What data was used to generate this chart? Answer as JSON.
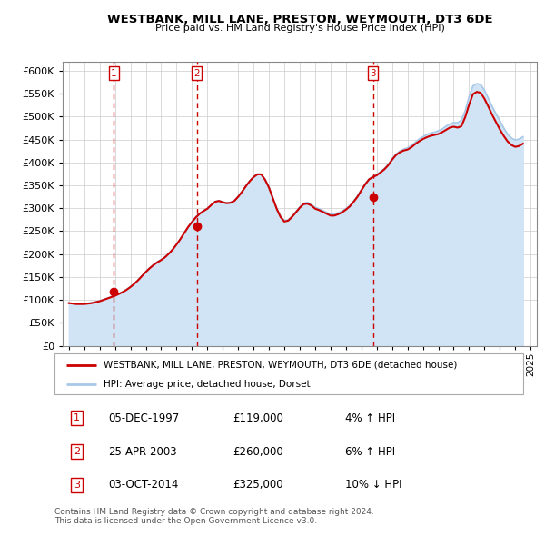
{
  "title_line1": "WESTBANK, MILL LANE, PRESTON, WEYMOUTH, DT3 6DE",
  "title_line2": "Price paid vs. HM Land Registry's House Price Index (HPI)",
  "ylim": [
    0,
    620000
  ],
  "yticks": [
    0,
    50000,
    100000,
    150000,
    200000,
    250000,
    300000,
    350000,
    400000,
    450000,
    500000,
    550000,
    600000
  ],
  "xlim_start": 1994.6,
  "xlim_end": 2025.4,
  "hpi_color": "#a8c8e8",
  "hpi_fill_color": "#d0e4f5",
  "price_color": "#cc0000",
  "transactions": [
    {
      "num": 1,
      "year": 1997.92,
      "price": 119000,
      "date": "05-DEC-1997",
      "pct": "4%",
      "dir": "↑"
    },
    {
      "num": 2,
      "year": 2003.32,
      "price": 260000,
      "date": "25-APR-2003",
      "pct": "6%",
      "dir": "↑"
    },
    {
      "num": 3,
      "year": 2014.75,
      "price": 325000,
      "date": "03-OCT-2014",
      "pct": "10%",
      "dir": "↓"
    }
  ],
  "legend_label1": "WESTBANK, MILL LANE, PRESTON, WEYMOUTH, DT3 6DE (detached house)",
  "legend_label2": "HPI: Average price, detached house, Dorset",
  "footer1": "Contains HM Land Registry data © Crown copyright and database right 2024.",
  "footer2": "This data is licensed under the Open Government Licence v3.0.",
  "hpi_data_x": [
    1995.0,
    1995.25,
    1995.5,
    1995.75,
    1996.0,
    1996.25,
    1996.5,
    1996.75,
    1997.0,
    1997.25,
    1997.5,
    1997.75,
    1998.0,
    1998.25,
    1998.5,
    1998.75,
    1999.0,
    1999.25,
    1999.5,
    1999.75,
    2000.0,
    2000.25,
    2000.5,
    2000.75,
    2001.0,
    2001.25,
    2001.5,
    2001.75,
    2002.0,
    2002.25,
    2002.5,
    2002.75,
    2003.0,
    2003.25,
    2003.5,
    2003.75,
    2004.0,
    2004.25,
    2004.5,
    2004.75,
    2005.0,
    2005.25,
    2005.5,
    2005.75,
    2006.0,
    2006.25,
    2006.5,
    2006.75,
    2007.0,
    2007.25,
    2007.5,
    2007.75,
    2008.0,
    2008.25,
    2008.5,
    2008.75,
    2009.0,
    2009.25,
    2009.5,
    2009.75,
    2010.0,
    2010.25,
    2010.5,
    2010.75,
    2011.0,
    2011.25,
    2011.5,
    2011.75,
    2012.0,
    2012.25,
    2012.5,
    2012.75,
    2013.0,
    2013.25,
    2013.5,
    2013.75,
    2014.0,
    2014.25,
    2014.5,
    2014.75,
    2015.0,
    2015.25,
    2015.5,
    2015.75,
    2016.0,
    2016.25,
    2016.5,
    2016.75,
    2017.0,
    2017.25,
    2017.5,
    2017.75,
    2018.0,
    2018.25,
    2018.5,
    2018.75,
    2019.0,
    2019.25,
    2019.5,
    2019.75,
    2020.0,
    2020.25,
    2020.5,
    2020.75,
    2021.0,
    2021.25,
    2021.5,
    2021.75,
    2022.0,
    2022.25,
    2022.5,
    2022.75,
    2023.0,
    2023.25,
    2023.5,
    2023.75,
    2024.0,
    2024.25,
    2024.5
  ],
  "hpi_data_y": [
    93000,
    92000,
    91000,
    91000,
    92000,
    93000,
    94000,
    96000,
    98000,
    101000,
    104000,
    107000,
    110000,
    114000,
    118000,
    123000,
    129000,
    136000,
    144000,
    153000,
    162000,
    170000,
    177000,
    183000,
    188000,
    194000,
    202000,
    211000,
    221000,
    233000,
    246000,
    259000,
    271000,
    281000,
    289000,
    295000,
    300000,
    308000,
    315000,
    317000,
    314000,
    312000,
    313000,
    317000,
    326000,
    337000,
    349000,
    360000,
    369000,
    375000,
    374000,
    363000,
    346000,
    323000,
    300000,
    283000,
    273000,
    275000,
    283000,
    293000,
    303000,
    311000,
    313000,
    308000,
    302000,
    299000,
    295000,
    291000,
    287000,
    287000,
    290000,
    294000,
    299000,
    306000,
    316000,
    327000,
    341000,
    354000,
    364000,
    370000,
    374000,
    380000,
    387000,
    396000,
    408000,
    418000,
    425000,
    429000,
    432000,
    437000,
    444000,
    451000,
    456000,
    461000,
    464000,
    466000,
    469000,
    473000,
    479000,
    484000,
    487000,
    487000,
    492000,
    513000,
    544000,
    567000,
    572000,
    570000,
    557000,
    540000,
    522000,
    506000,
    491000,
    475000,
    462000,
    453000,
    449000,
    451000,
    456000
  ],
  "price_data_x": [
    1995.0,
    1995.25,
    1995.5,
    1995.75,
    1996.0,
    1996.25,
    1996.5,
    1996.75,
    1997.0,
    1997.25,
    1997.5,
    1997.75,
    1998.0,
    1998.25,
    1998.5,
    1998.75,
    1999.0,
    1999.25,
    1999.5,
    1999.75,
    2000.0,
    2000.25,
    2000.5,
    2000.75,
    2001.0,
    2001.25,
    2001.5,
    2001.75,
    2002.0,
    2002.25,
    2002.5,
    2002.75,
    2003.0,
    2003.25,
    2003.5,
    2003.75,
    2004.0,
    2004.25,
    2004.5,
    2004.75,
    2005.0,
    2005.25,
    2005.5,
    2005.75,
    2006.0,
    2006.25,
    2006.5,
    2006.75,
    2007.0,
    2007.25,
    2007.5,
    2007.75,
    2008.0,
    2008.25,
    2008.5,
    2008.75,
    2009.0,
    2009.25,
    2009.5,
    2009.75,
    2010.0,
    2010.25,
    2010.5,
    2010.75,
    2011.0,
    2011.25,
    2011.5,
    2011.75,
    2012.0,
    2012.25,
    2012.5,
    2012.75,
    2013.0,
    2013.25,
    2013.5,
    2013.75,
    2014.0,
    2014.25,
    2014.5,
    2014.75,
    2015.0,
    2015.25,
    2015.5,
    2015.75,
    2016.0,
    2016.25,
    2016.5,
    2016.75,
    2017.0,
    2017.25,
    2017.5,
    2017.75,
    2018.0,
    2018.25,
    2018.5,
    2018.75,
    2019.0,
    2019.25,
    2019.5,
    2019.75,
    2020.0,
    2020.25,
    2020.5,
    2020.75,
    2021.0,
    2021.25,
    2021.5,
    2021.75,
    2022.0,
    2022.25,
    2022.5,
    2022.75,
    2023.0,
    2023.25,
    2023.5,
    2023.75,
    2024.0,
    2024.25,
    2024.5
  ],
  "price_data_y": [
    93000,
    92000,
    91000,
    91000,
    91000,
    92000,
    93000,
    95000,
    97000,
    100000,
    103000,
    106000,
    109000,
    113000,
    117000,
    122000,
    128000,
    135000,
    143000,
    152000,
    161000,
    169000,
    176000,
    182000,
    187000,
    193000,
    201000,
    210000,
    221000,
    233000,
    246000,
    259000,
    270000,
    280000,
    288000,
    294000,
    299000,
    307000,
    314000,
    316000,
    313000,
    311000,
    312000,
    316000,
    325000,
    336000,
    348000,
    359000,
    368000,
    374000,
    374000,
    362000,
    345000,
    322000,
    299000,
    281000,
    271000,
    273000,
    281000,
    291000,
    301000,
    309000,
    310000,
    306000,
    299000,
    296000,
    292000,
    288000,
    284000,
    284000,
    287000,
    291000,
    297000,
    304000,
    314000,
    325000,
    339000,
    352000,
    363000,
    368000,
    372000,
    378000,
    385000,
    394000,
    406000,
    416000,
    422000,
    426000,
    428000,
    433000,
    440000,
    446000,
    451000,
    455000,
    458000,
    460000,
    462000,
    466000,
    471000,
    476000,
    478000,
    476000,
    479000,
    499000,
    526000,
    549000,
    554000,
    552000,
    539000,
    522000,
    504000,
    488000,
    472000,
    458000,
    446000,
    438000,
    434000,
    436000,
    441000
  ]
}
